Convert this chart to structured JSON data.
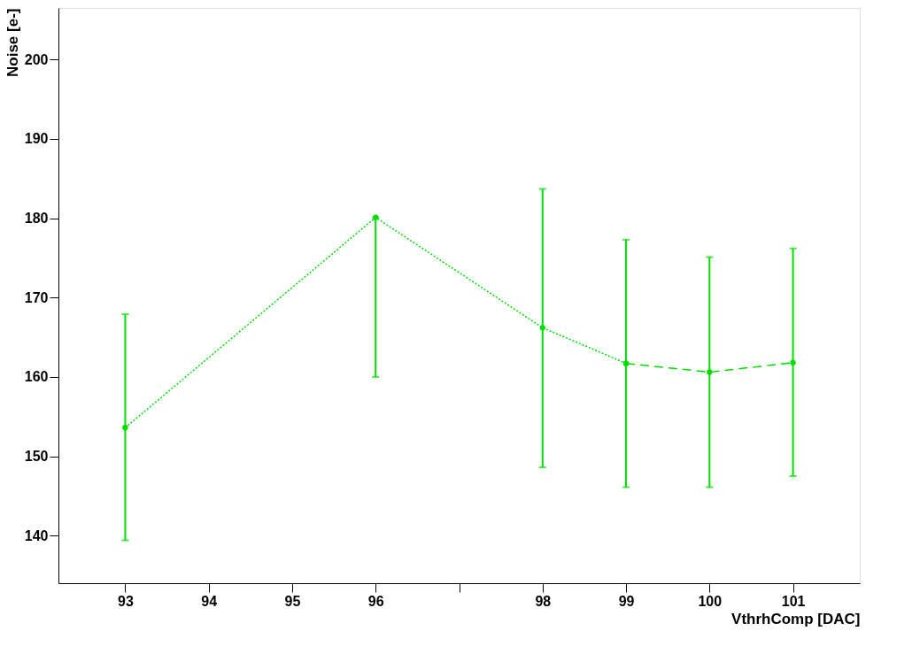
{
  "chart_data": {
    "type": "line",
    "xlabel": "VthrhComp [DAC]",
    "ylabel": "Noise [e-]",
    "xlim": [
      92.2,
      101.8
    ],
    "xticks": [
      93,
      94,
      95,
      96,
      {
        "value": 97,
        "label": null
      },
      98,
      99,
      100,
      101
    ],
    "ylim": [
      134,
      206.5
    ],
    "yticks": [
      140,
      150,
      160,
      170,
      180,
      190,
      200
    ],
    "grid": false,
    "marker": "circle",
    "series": [
      {
        "color": "#00dd00",
        "line_style": "dotted",
        "x": [
          93,
          96,
          98,
          99
        ],
        "values": [
          153.6,
          180.1,
          166.2,
          161.7
        ],
        "errors": [
          [
            139.4,
            167.9
          ],
          [
            160,
            180.1
          ],
          [
            148.6,
            183.7
          ],
          [
            146.1,
            177.3
          ]
        ]
      },
      {
        "color": "#00dd00",
        "line_style": "dashed",
        "x": [
          99,
          100,
          101
        ],
        "values": [
          161.7,
          160.6,
          161.8
        ],
        "errors": [
          null,
          [
            146.1,
            175.1
          ],
          [
            147.5,
            176.2
          ]
        ]
      }
    ]
  }
}
